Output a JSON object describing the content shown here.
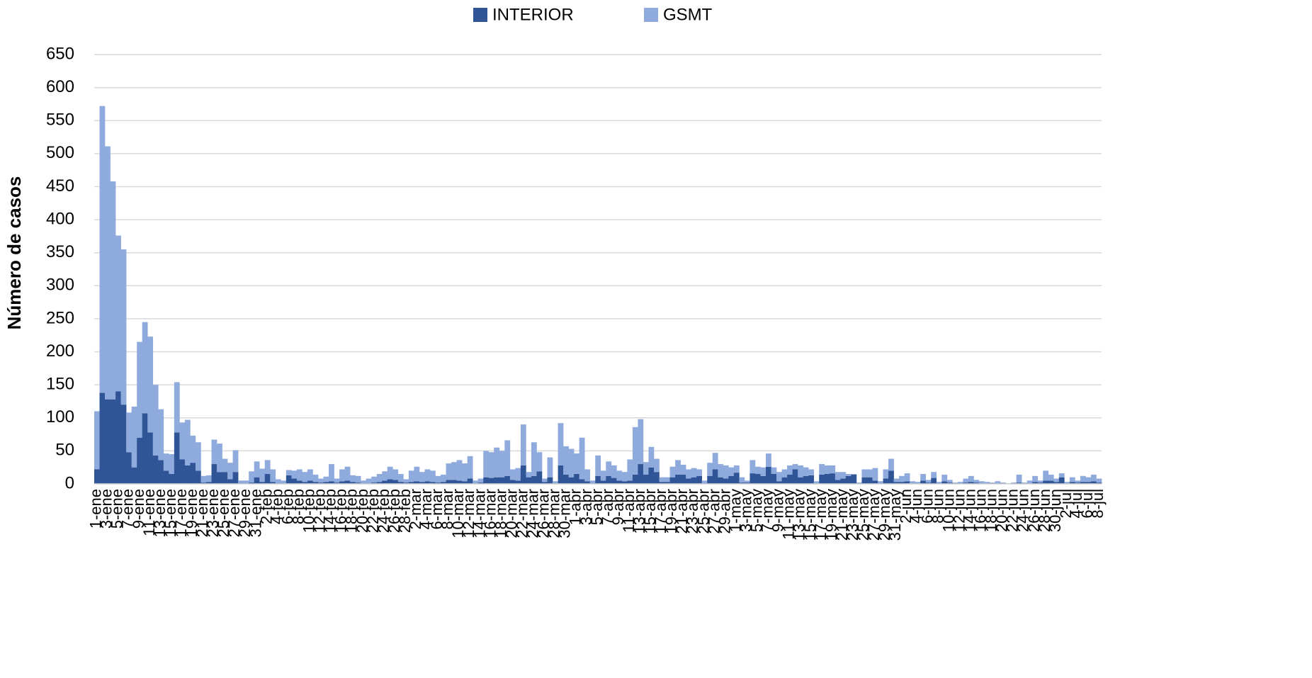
{
  "chart_data": {
    "type": "stacked_bar",
    "y_label": "Número de casos",
    "ylim": [
      0,
      650
    ],
    "yticks": [
      0,
      50,
      100,
      150,
      200,
      250,
      300,
      350,
      400,
      450,
      500,
      550,
      600,
      650
    ],
    "grid": true,
    "legend": "top",
    "categories": [
      "1-ene",
      null,
      "3-ene",
      null,
      "5-ene",
      null,
      "7-ene",
      null,
      "9-ene",
      null,
      "11-ene",
      null,
      "13-ene",
      null,
      "15-ene",
      null,
      "17-ene",
      null,
      "19-ene",
      null,
      "21-ene",
      null,
      "23-ene",
      null,
      "25-ene",
      null,
      "27-ene",
      null,
      "29-ene",
      null,
      "31-ene",
      null,
      "2-feb",
      null,
      "4-feb",
      null,
      "6-feb",
      null,
      "8-feb",
      null,
      "10-feb",
      null,
      "12-feb",
      null,
      "14-feb",
      null,
      "16-feb",
      null,
      "18-feb",
      null,
      "20-feb",
      null,
      "22-feb",
      null,
      "24-feb",
      null,
      "26-feb",
      null,
      "28-feb",
      null,
      "2-mar",
      null,
      "4-mar",
      null,
      "6-mar",
      null,
      "8-mar",
      null,
      "10-mar",
      null,
      "12-mar",
      null,
      "14-mar",
      null,
      "16-mar",
      null,
      "18-mar",
      null,
      "20-mar",
      null,
      "22-mar",
      null,
      "24-mar",
      null,
      "26-mar",
      null,
      "28-mar",
      null,
      "30-mar",
      null,
      "1-abr",
      null,
      "3-abr",
      null,
      "5-abr",
      null,
      "7-abr",
      null,
      "9-abr",
      null,
      "11-abr",
      null,
      "13-abr",
      null,
      "15-abr",
      null,
      "17-abr",
      null,
      "19-abr",
      null,
      "21-abr",
      null,
      "23-abr",
      null,
      "25-abr",
      null,
      "27-abr",
      null,
      "29-abr",
      null,
      "1-may",
      null,
      "3-may",
      null,
      "5-may",
      null,
      "7-may",
      null,
      "9-may",
      null,
      "11-may",
      null,
      "13-may",
      null,
      "15-may",
      null,
      "17-may",
      null,
      "19-may",
      null,
      "21-may",
      null,
      "23-may",
      null,
      "25-may",
      null,
      "27-may",
      null,
      "29-may",
      null,
      "31-may",
      null,
      "2-jun",
      null,
      "4-jun",
      null,
      "6-jun",
      null,
      "8-jun",
      null,
      "10-jun",
      null,
      "12-jun",
      null,
      "14-jun",
      null,
      "16-jun",
      null,
      "18-jun",
      null,
      "20-jun",
      null,
      "22-jun",
      null,
      "24-jun",
      null,
      "26-jun",
      null,
      "28-jun",
      null,
      "30-jun",
      null,
      "2-jul",
      null,
      "4-jul",
      null,
      "6-jul",
      null,
      "8-jul"
    ],
    "series": [
      {
        "name": "INTERIOR",
        "color": "#2f5597",
        "values": [
          22,
          138,
          128,
          128,
          140,
          120,
          48,
          25,
          70,
          107,
          78,
          43,
          36,
          20,
          15,
          78,
          37,
          28,
          32,
          20,
          2,
          3,
          30,
          18,
          18,
          7,
          18,
          1,
          1,
          2,
          10,
          3,
          15,
          3,
          1,
          1,
          13,
          8,
          5,
          3,
          5,
          3,
          2,
          3,
          4,
          2,
          4,
          5,
          3,
          2,
          1,
          1,
          2,
          3,
          5,
          7,
          6,
          3,
          2,
          3,
          4,
          3,
          4,
          3,
          2,
          3,
          6,
          6,
          5,
          4,
          8,
          1,
          2,
          10,
          9,
          10,
          10,
          12,
          6,
          5,
          28,
          10,
          12,
          19,
          3,
          10,
          1,
          28,
          14,
          10,
          15,
          7,
          4,
          1,
          12,
          5,
          12,
          9,
          5,
          4,
          5,
          14,
          30,
          14,
          25,
          18,
          3,
          3,
          10,
          14,
          14,
          8,
          10,
          12,
          1,
          12,
          22,
          10,
          8,
          12,
          17,
          2,
          2,
          16,
          15,
          12,
          26,
          15,
          4,
          10,
          14,
          22,
          10,
          12,
          13,
          1,
          14,
          15,
          16,
          6,
          8,
          12,
          14,
          1,
          10,
          10,
          5,
          1,
          8,
          20,
          3,
          3,
          4,
          1,
          1,
          5,
          2,
          9,
          1,
          4,
          2,
          1,
          1,
          2,
          3,
          2,
          1,
          1,
          1,
          1,
          1,
          0,
          1,
          2,
          1,
          1,
          3,
          2,
          5,
          5,
          3,
          10,
          1,
          3,
          2,
          3,
          3,
          4,
          2
        ]
      },
      {
        "name": "GSMT",
        "color": "#8faadc",
        "values": [
          88,
          434,
          383,
          330,
          236,
          235,
          60,
          92,
          145,
          138,
          145,
          107,
          77,
          26,
          30,
          76,
          56,
          69,
          41,
          43,
          10,
          10,
          37,
          43,
          20,
          25,
          33,
          4,
          4,
          17,
          24,
          20,
          21,
          19,
          6,
          4,
          8,
          12,
          17,
          15,
          17,
          11,
          6,
          8,
          26,
          6,
          18,
          21,
          10,
          10,
          4,
          7,
          9,
          12,
          14,
          19,
          16,
          12,
          5,
          17,
          22,
          15,
          18,
          17,
          10,
          11,
          25,
          27,
          31,
          27,
          34,
          4,
          6,
          40,
          39,
          45,
          40,
          54,
          16,
          19,
          62,
          8,
          51,
          29,
          5,
          30,
          3,
          64,
          43,
          43,
          31,
          63,
          18,
          4,
          31,
          15,
          22,
          19,
          15,
          14,
          32,
          72,
          68,
          19,
          31,
          20,
          7,
          7,
          16,
          22,
          15,
          14,
          14,
          10,
          4,
          20,
          25,
          20,
          20,
          13,
          11,
          8,
          3,
          20,
          11,
          13,
          20,
          10,
          14,
          12,
          14,
          8,
          18,
          13,
          9,
          3,
          16,
          13,
          12,
          12,
          10,
          3,
          1,
          1,
          12,
          12,
          19,
          3,
          14,
          18,
          5,
          9,
          12,
          3,
          2,
          10,
          4,
          9,
          2,
          10,
          4,
          1,
          2,
          6,
          9,
          4,
          3,
          2,
          1,
          3,
          1,
          1,
          1,
          12,
          1,
          4,
          9,
          3,
          15,
          9,
          5,
          6,
          2,
          7,
          3,
          9,
          7,
          10,
          6
        ]
      }
    ]
  }
}
